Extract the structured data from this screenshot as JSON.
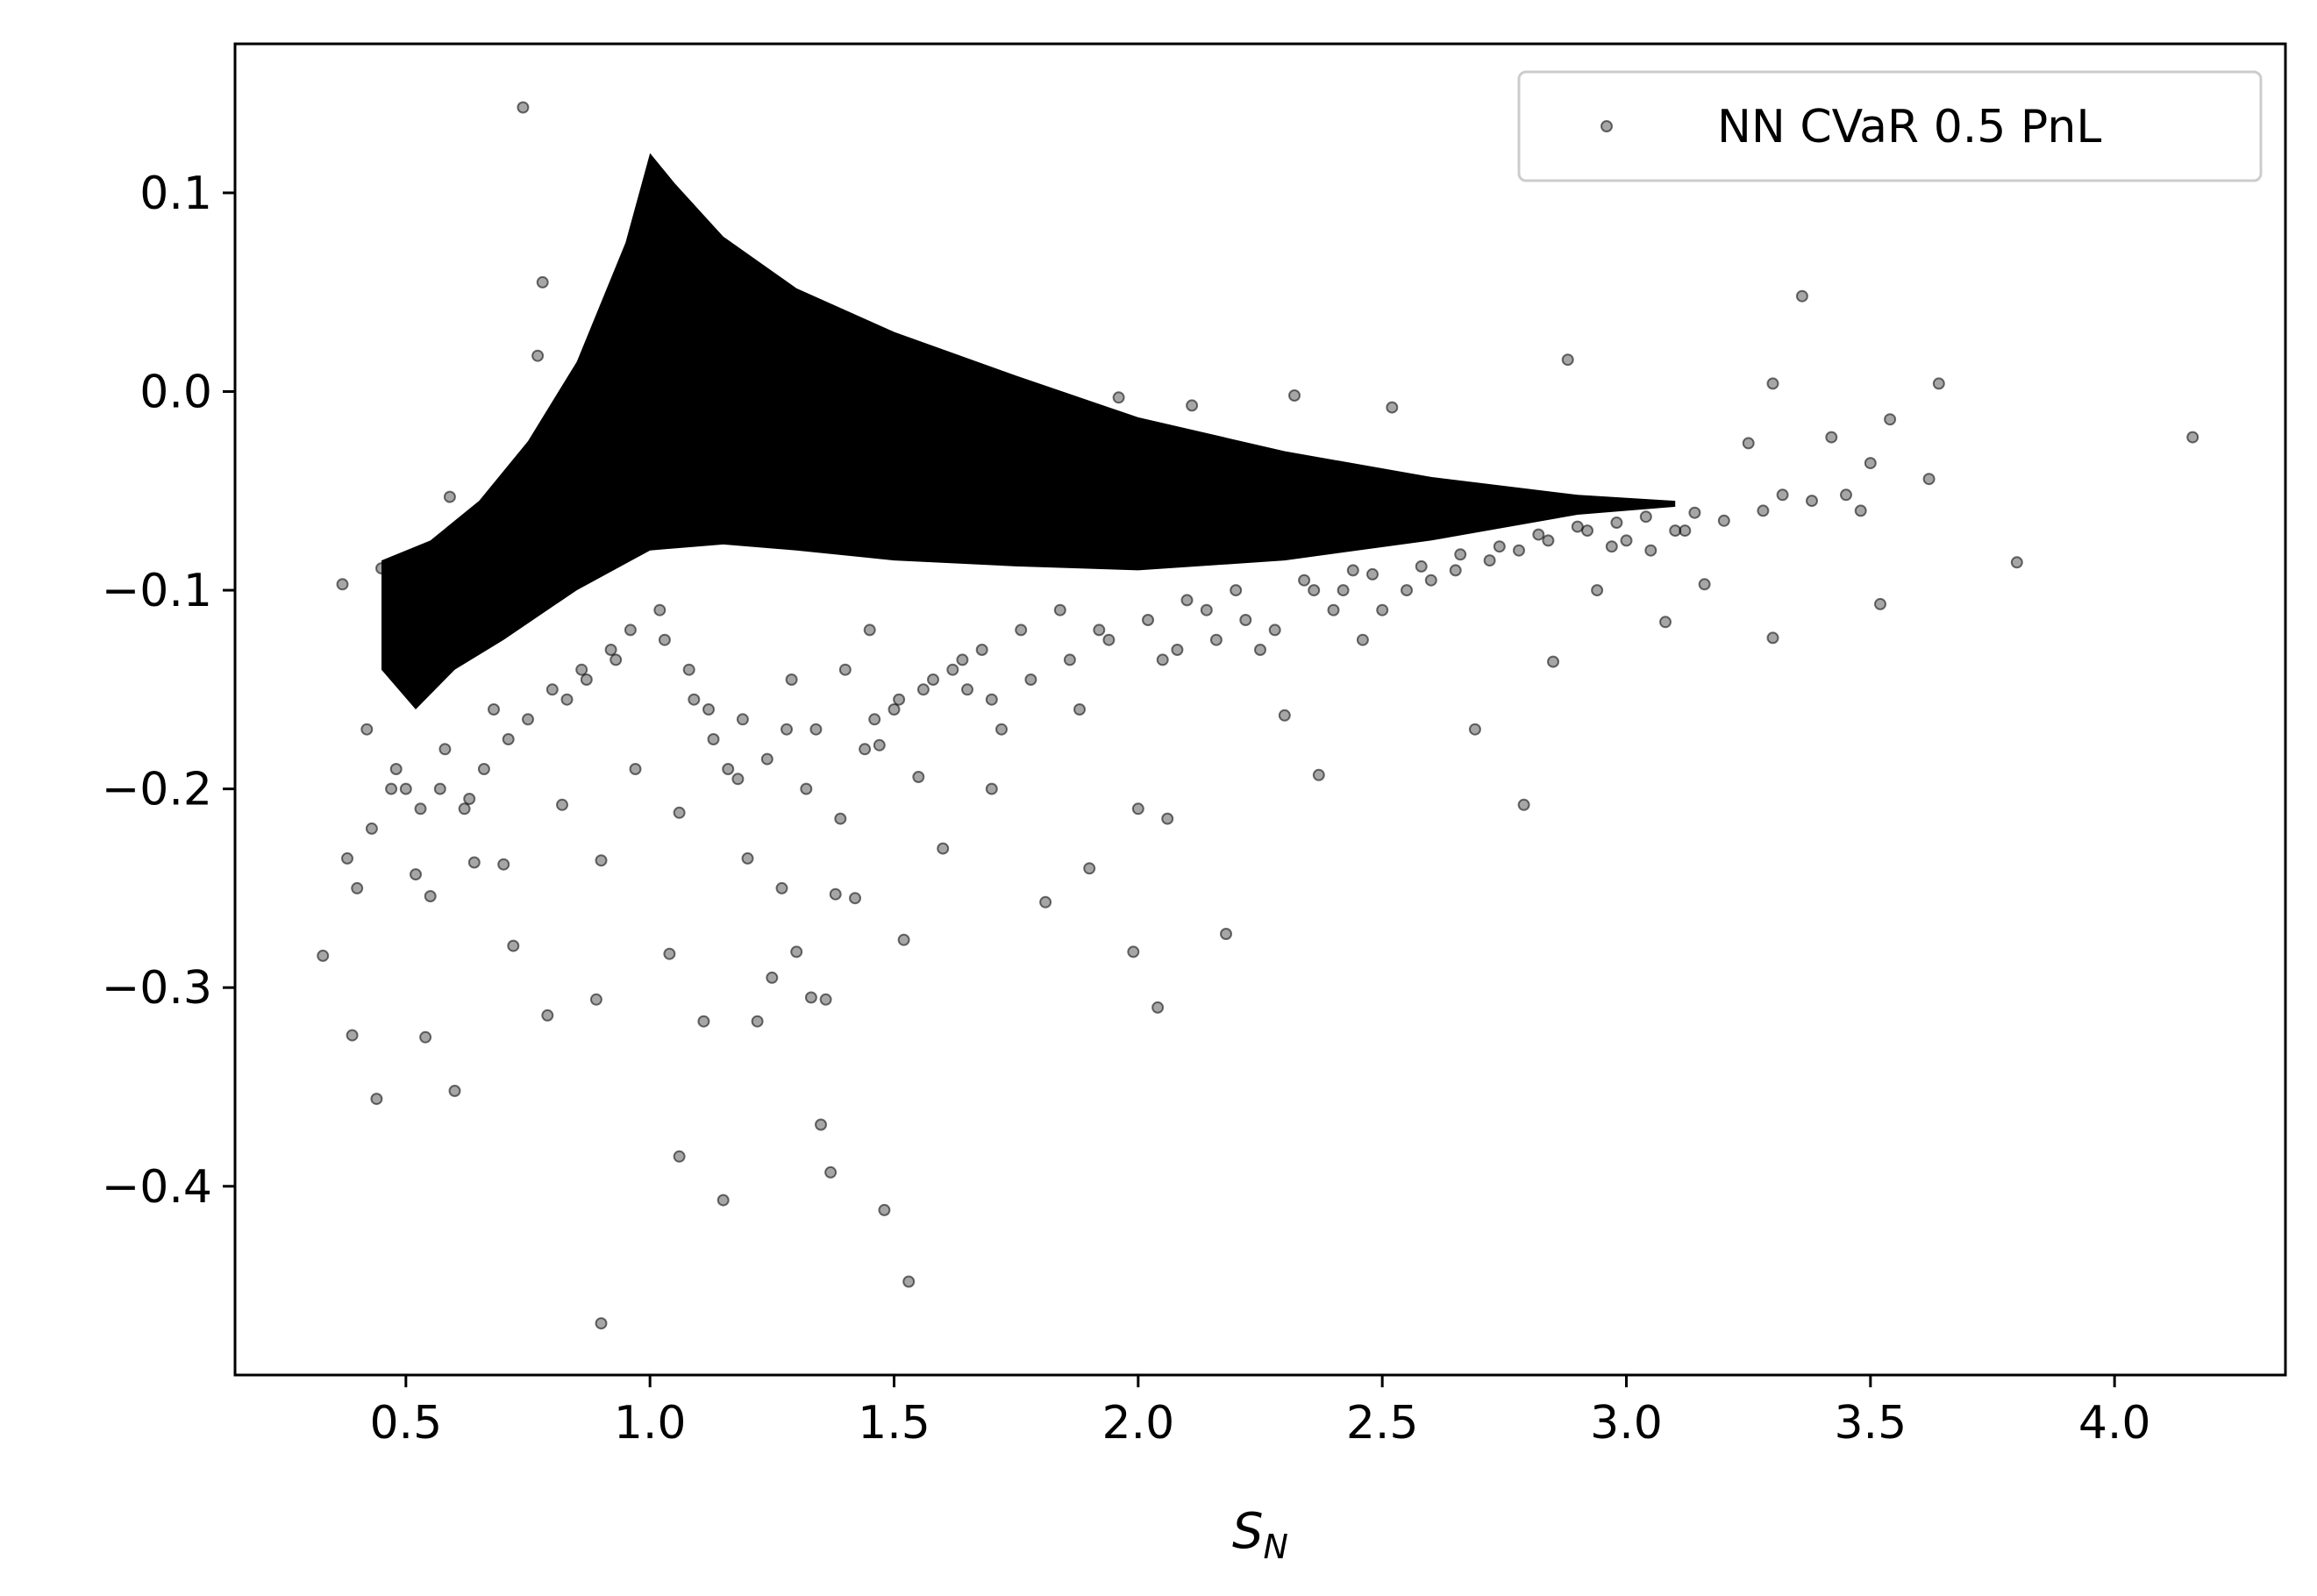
{
  "chart_data": {
    "type": "scatter",
    "title": "",
    "xlabel": "S",
    "xlabel_sub": "N",
    "ylabel": "",
    "xlim": [
      0.15,
      4.35
    ],
    "ylim": [
      -0.495,
      0.175
    ],
    "xticks": [
      "0.5",
      "1.0",
      "1.5",
      "2.0",
      "2.5",
      "3.0",
      "3.5",
      "4.0"
    ],
    "yticks": [
      "0.1",
      "0.0",
      "−0.1",
      "−0.2",
      "−0.3",
      "−0.4"
    ],
    "xtick_values": [
      0.5,
      1.0,
      1.5,
      2.0,
      2.5,
      3.0,
      3.5,
      4.0
    ],
    "ytick_values": [
      0.1,
      0.0,
      -0.1,
      -0.2,
      -0.3,
      -0.4
    ],
    "grid": false,
    "legend_position": "upper right",
    "marker_color": "#000000",
    "series": [
      {
        "name": "NN CVaR 0.5 PnL",
        "dense_band_upper": [
          [
            0.45,
            -0.085
          ],
          [
            0.55,
            -0.075
          ],
          [
            0.65,
            -0.055
          ],
          [
            0.75,
            -0.025
          ],
          [
            0.85,
            0.015
          ],
          [
            0.95,
            0.075
          ],
          [
            1.0,
            0.12
          ],
          [
            1.05,
            0.105
          ],
          [
            1.15,
            0.078
          ],
          [
            1.3,
            0.052
          ],
          [
            1.5,
            0.03
          ],
          [
            1.75,
            0.008
          ],
          [
            2.0,
            -0.013
          ],
          [
            2.3,
            -0.03
          ],
          [
            2.6,
            -0.043
          ],
          [
            2.9,
            -0.052
          ],
          [
            3.1,
            -0.055
          ]
        ],
        "dense_band_lower": [
          [
            3.1,
            -0.058
          ],
          [
            2.9,
            -0.062
          ],
          [
            2.6,
            -0.075
          ],
          [
            2.3,
            -0.085
          ],
          [
            2.0,
            -0.09
          ],
          [
            1.75,
            -0.088
          ],
          [
            1.5,
            -0.085
          ],
          [
            1.3,
            -0.08
          ],
          [
            1.15,
            -0.077
          ],
          [
            1.0,
            -0.08
          ],
          [
            0.85,
            -0.1
          ],
          [
            0.7,
            -0.125
          ],
          [
            0.6,
            -0.14
          ],
          [
            0.52,
            -0.16
          ],
          [
            0.45,
            -0.14
          ]
        ],
        "x": [
          0.74,
          0.78,
          0.77,
          0.59,
          0.45,
          0.37,
          0.38,
          0.33,
          0.39,
          0.4,
          0.44,
          0.54,
          0.6,
          0.52,
          0.55,
          0.57,
          0.64,
          0.7,
          0.72,
          0.79,
          0.82,
          0.89,
          0.9,
          0.9,
          0.97,
          1.04,
          1.06,
          1.06,
          1.11,
          1.15,
          1.2,
          1.22,
          1.25,
          1.27,
          1.3,
          1.33,
          1.35,
          1.36,
          1.37,
          1.38,
          1.42,
          1.47,
          1.48,
          1.52,
          1.53,
          1.55,
          1.6,
          1.7,
          1.81,
          1.9,
          1.99,
          2.0,
          2.04,
          2.06,
          2.18,
          2.3,
          2.37,
          2.46,
          2.69,
          2.79,
          2.85,
          2.94,
          2.97,
          3.08,
          3.1,
          3.16,
          3.25,
          3.3,
          3.3,
          3.36,
          3.42,
          3.45,
          3.5,
          3.52,
          3.54,
          3.62,
          3.64,
          3.8,
          4.16,
          1.96,
          2.11,
          2.32,
          2.52,
          2.88,
          3.32,
          1.4,
          1.18,
          1.45,
          1.65,
          1.72,
          1.88,
          2.05,
          2.25,
          2.4,
          2.55,
          0.42,
          0.48,
          0.5,
          0.58,
          0.62,
          0.66,
          0.68,
          0.8,
          0.86,
          0.92,
          0.96,
          1.02,
          1.08,
          1.12,
          1.16,
          1.28,
          1.32,
          1.44,
          1.5,
          1.56,
          1.62,
          1.68,
          1.76,
          1.84,
          1.92,
          2.08,
          2.14,
          2.2,
          2.28,
          2.36,
          2.44,
          2.5,
          2.6,
          2.65,
          2.72,
          2.78,
          2.84,
          2.92,
          3.0,
          3.05,
          3.12,
          3.2,
          3.28,
          3.38,
          3.48,
          0.43,
          0.47,
          0.53,
          0.63,
          0.71,
          0.75,
          0.83,
          0.87,
          0.93,
          1.03,
          1.09,
          1.13,
          1.19,
          1.24,
          1.29,
          1.34,
          1.39,
          1.46,
          1.51,
          1.58,
          1.64,
          1.7,
          1.78,
          1.86,
          1.94,
          2.02,
          2.1,
          2.16,
          2.22,
          2.34,
          2.42,
          2.48,
          2.58,
          2.66,
          2.74,
          2.82,
          2.9,
          2.98,
          3.04,
          3.14
        ],
        "y": [
          0.143,
          0.055,
          0.018,
          -0.053,
          -0.089,
          -0.097,
          -0.235,
          -0.284,
          -0.324,
          -0.25,
          -0.356,
          -0.325,
          -0.352,
          -0.243,
          -0.254,
          -0.2,
          -0.237,
          -0.238,
          -0.279,
          -0.314,
          -0.208,
          -0.306,
          -0.469,
          -0.236,
          -0.19,
          -0.283,
          -0.385,
          -0.212,
          -0.317,
          -0.407,
          -0.235,
          -0.317,
          -0.295,
          -0.25,
          -0.282,
          -0.305,
          -0.369,
          -0.306,
          -0.393,
          -0.253,
          -0.255,
          -0.178,
          -0.412,
          -0.276,
          -0.448,
          -0.194,
          -0.23,
          -0.2,
          -0.257,
          -0.24,
          -0.282,
          -0.21,
          -0.31,
          -0.215,
          -0.273,
          -0.163,
          -0.193,
          -0.125,
          -0.17,
          -0.208,
          -0.136,
          -0.1,
          -0.078,
          -0.116,
          -0.07,
          -0.097,
          -0.026,
          -0.124,
          0.004,
          0.048,
          -0.023,
          -0.052,
          -0.036,
          -0.107,
          -0.014,
          -0.044,
          0.004,
          -0.086,
          -0.023,
          -0.003,
          -0.007,
          -0.002,
          -0.008,
          0.016,
          -0.052,
          -0.14,
          -0.195,
          -0.12,
          -0.15,
          -0.17,
          -0.16,
          -0.135,
          -0.13,
          -0.11,
          -0.1,
          -0.17,
          -0.19,
          -0.2,
          -0.18,
          -0.21,
          -0.19,
          -0.16,
          -0.15,
          -0.14,
          -0.13,
          -0.12,
          -0.11,
          -0.14,
          -0.16,
          -0.19,
          -0.17,
          -0.2,
          -0.18,
          -0.16,
          -0.15,
          -0.14,
          -0.13,
          -0.12,
          -0.11,
          -0.12,
          -0.13,
          -0.11,
          -0.1,
          -0.12,
          -0.1,
          -0.09,
          -0.11,
          -0.095,
          -0.09,
          -0.085,
          -0.08,
          -0.075,
          -0.07,
          -0.075,
          -0.08,
          -0.07,
          -0.065,
          -0.06,
          -0.055,
          -0.06,
          -0.22,
          -0.2,
          -0.21,
          -0.205,
          -0.175,
          -0.165,
          -0.155,
          -0.145,
          -0.135,
          -0.125,
          -0.155,
          -0.175,
          -0.165,
          -0.185,
          -0.145,
          -0.17,
          -0.215,
          -0.165,
          -0.155,
          -0.145,
          -0.135,
          -0.155,
          -0.145,
          -0.135,
          -0.125,
          -0.115,
          -0.105,
          -0.125,
          -0.115,
          -0.095,
          -0.1,
          -0.092,
          -0.088,
          -0.082,
          -0.078,
          -0.072,
          -0.068,
          -0.066,
          -0.063,
          -0.061
        ]
      }
    ]
  }
}
